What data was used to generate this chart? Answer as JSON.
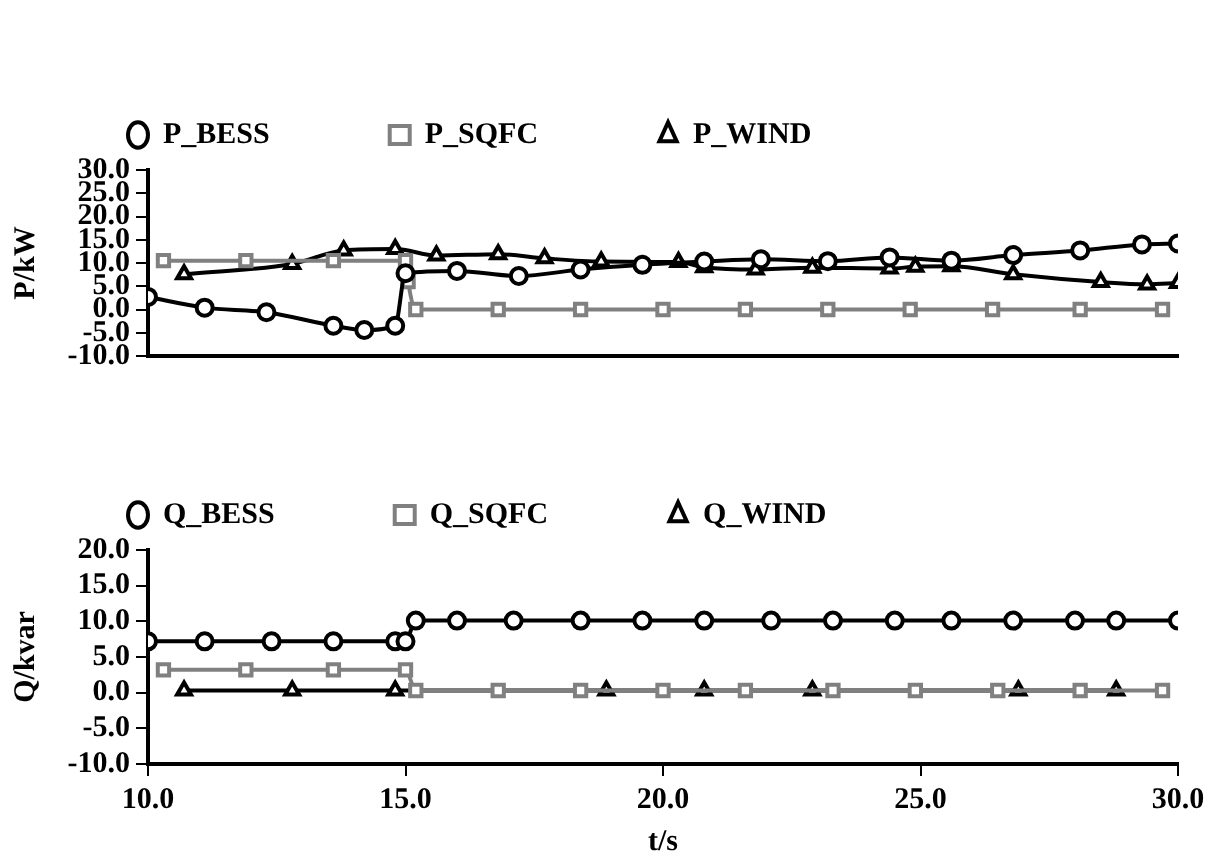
{
  "chart_data": [
    {
      "type": "line",
      "ylabel": "P/kW",
      "xlim": [
        10,
        30
      ],
      "ylim": [
        -10,
        30
      ],
      "yticks": [
        {
          "value": -10,
          "label": "-10.0"
        },
        {
          "value": -5,
          "label": "-5.0"
        },
        {
          "value": 0,
          "label": "0.0"
        },
        {
          "value": 5,
          "label": "5.0"
        },
        {
          "value": 10,
          "label": "10.0"
        },
        {
          "value": 15,
          "label": "15.0"
        },
        {
          "value": 20,
          "label": "20.0"
        },
        {
          "value": 25,
          "label": "25.0"
        },
        {
          "value": 30,
          "label": "30.0"
        }
      ],
      "tick_labels": "y",
      "grid": false,
      "legend": "top",
      "series": [
        {
          "name": "P_BESS",
          "color": "#000000",
          "marker": "circle",
          "x": [
            10,
            11.1,
            12.3,
            13.6,
            14.2,
            14.8,
            15.0,
            16.0,
            17.2,
            18.4,
            19.6,
            20.8,
            21.9,
            23.2,
            24.4,
            25.6,
            26.8,
            28.1,
            29.3,
            30
          ],
          "values": [
            2.7,
            0.4,
            -0.6,
            -3.5,
            -4.4,
            -3.5,
            7.8,
            8.3,
            7.2,
            8.6,
            9.6,
            10.3,
            10.8,
            10.4,
            11.2,
            10.5,
            11.7,
            12.7,
            14.0,
            14.2
          ]
        },
        {
          "name": "P_SQFC",
          "color": "#808080",
          "marker": "square",
          "x": [
            10.3,
            11.9,
            13.6,
            15.0,
            15.05,
            15.2,
            16.8,
            18.4,
            20.0,
            21.6,
            23.2,
            24.8,
            26.4,
            28.1,
            29.7
          ],
          "values": [
            10.5,
            10.5,
            10.5,
            10.5,
            6,
            0,
            0,
            0,
            0,
            0,
            0,
            0,
            0,
            0,
            0
          ]
        },
        {
          "name": "P_WIND",
          "color": "#000000",
          "marker": "triangle",
          "x": [
            10.7,
            12.8,
            13.8,
            14.8,
            15.6,
            16.8,
            17.7,
            18.8,
            20.3,
            20.8,
            21.8,
            22.9,
            24.4,
            24.9,
            25.6,
            26.8,
            28.5,
            29.4,
            30
          ],
          "values": [
            7.6,
            9.8,
            12.7,
            13.0,
            11.6,
            11.9,
            11.0,
            10.3,
            10.2,
            9.1,
            8.6,
            9.0,
            8.8,
            9.2,
            9.3,
            7.6,
            5.9,
            5.4,
            5.7
          ]
        }
      ]
    },
    {
      "type": "line",
      "ylabel": "Q/kvar",
      "xlabel": "t/s",
      "xlim": [
        10,
        30
      ],
      "xticks": [
        {
          "value": 10,
          "label": "10.0"
        },
        {
          "value": 15,
          "label": "15.0"
        },
        {
          "value": 20,
          "label": "20.0"
        },
        {
          "value": 25,
          "label": "25.0"
        },
        {
          "value": 30,
          "label": "30.0"
        }
      ],
      "ylim": [
        -10,
        20
      ],
      "yticks": [
        {
          "value": -10,
          "label": "-10.0"
        },
        {
          "value": -5,
          "label": "-5.0"
        },
        {
          "value": 0,
          "label": "0.0"
        },
        {
          "value": 5,
          "label": "5.0"
        },
        {
          "value": 10,
          "label": "10.0"
        },
        {
          "value": 15,
          "label": "15.0"
        },
        {
          "value": 20,
          "label": "20.0"
        }
      ],
      "grid": false,
      "legend": "top",
      "series": [
        {
          "name": "Q_BESS",
          "color": "#000000",
          "marker": "circle",
          "x": [
            10.0,
            11.1,
            12.4,
            13.6,
            14.8,
            15.0,
            15.2,
            16.0,
            17.1,
            18.4,
            19.6,
            20.8,
            22.1,
            23.3,
            24.5,
            25.6,
            26.8,
            28.0,
            28.8,
            30
          ],
          "values": [
            7.2,
            7.2,
            7.2,
            7.2,
            7.2,
            7.2,
            10.1,
            10.1,
            10.1,
            10.1,
            10.1,
            10.1,
            10.1,
            10.1,
            10.1,
            10.1,
            10.1,
            10.1,
            10.1,
            10.1
          ]
        },
        {
          "name": "Q_SQFC",
          "color": "#808080",
          "marker": "square",
          "x": [
            10.3,
            11.9,
            13.6,
            15.0,
            15.2,
            16.8,
            18.4,
            20.0,
            21.6,
            23.3,
            24.9,
            26.5,
            28.1,
            29.7
          ],
          "values": [
            3.2,
            3.2,
            3.2,
            3.2,
            0.3,
            0.3,
            0.3,
            0.3,
            0.3,
            0.3,
            0.3,
            0.3,
            0.3,
            0.3
          ]
        },
        {
          "name": "Q_WIND",
          "color": "#000000",
          "marker": "triangle",
          "x": [
            10.7,
            12.8,
            14.8,
            18.9,
            20.8,
            22.9,
            26.9,
            28.8
          ],
          "values": [
            0.3,
            0.3,
            0.3,
            0.3,
            0.3,
            0.3,
            0.3,
            0.3
          ]
        }
      ]
    }
  ]
}
